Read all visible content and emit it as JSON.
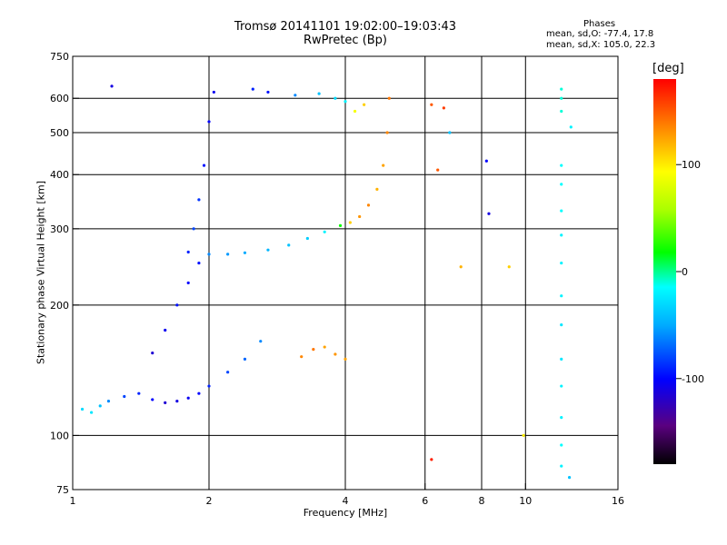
{
  "header": {
    "title": "Tromsø 20141101 19:02:00–19:03:43",
    "subtitle": "RwPretec (Bp)",
    "phases_label": "Phases",
    "stat_o": "mean, sd,O: -77.4, 17.8",
    "stat_x": "mean, sd,X: 105.0, 22.3"
  },
  "colorbar": {
    "unit": "[deg]",
    "ticks": [
      {
        "value": 100,
        "label": "100"
      },
      {
        "value": 0,
        "label": "0"
      },
      {
        "value": -100,
        "label": "-100"
      }
    ],
    "range": [
      -180,
      180
    ]
  },
  "chart_data": {
    "type": "scatter",
    "xlabel": "Frequency [MHz]",
    "ylabel": "Stationary phase Virtual Height [km]",
    "xscale": "log",
    "yscale": "log",
    "xlim": [
      1,
      16
    ],
    "ylim": [
      75,
      750
    ],
    "xticks": [
      {
        "value": 1,
        "label": "1"
      },
      {
        "value": 2,
        "label": "2"
      },
      {
        "value": 4,
        "label": "4"
      },
      {
        "value": 6,
        "label": "6"
      },
      {
        "value": 8,
        "label": "8"
      },
      {
        "value": 10,
        "label": "10"
      },
      {
        "value": 16,
        "label": "16"
      }
    ],
    "yticks": [
      {
        "value": 75,
        "label": "75"
      },
      {
        "value": 100,
        "label": "100"
      },
      {
        "value": 200,
        "label": "200"
      },
      {
        "value": 300,
        "label": "300"
      },
      {
        "value": 400,
        "label": "400"
      },
      {
        "value": 500,
        "label": "500"
      },
      {
        "value": 600,
        "label": "600"
      },
      {
        "value": 750,
        "label": "750"
      }
    ],
    "vgrid": [
      2,
      4,
      6,
      8,
      10
    ],
    "hgrid": [
      100,
      200,
      300,
      400,
      500,
      600
    ],
    "grid": true,
    "color_by": "phase [deg]",
    "points": [
      {
        "x": 1.05,
        "y": 115,
        "phase": -30
      },
      {
        "x": 1.1,
        "y": 113,
        "phase": -25
      },
      {
        "x": 1.15,
        "y": 117,
        "phase": -40
      },
      {
        "x": 1.2,
        "y": 120,
        "phase": -60
      },
      {
        "x": 1.22,
        "y": 640,
        "phase": -110
      },
      {
        "x": 1.3,
        "y": 123,
        "phase": -80
      },
      {
        "x": 1.4,
        "y": 125,
        "phase": -90
      },
      {
        "x": 1.5,
        "y": 121,
        "phase": -100
      },
      {
        "x": 1.6,
        "y": 119,
        "phase": -115
      },
      {
        "x": 1.7,
        "y": 120,
        "phase": -110
      },
      {
        "x": 1.8,
        "y": 122,
        "phase": -105
      },
      {
        "x": 1.9,
        "y": 125,
        "phase": -100
      },
      {
        "x": 2.0,
        "y": 130,
        "phase": -90
      },
      {
        "x": 2.2,
        "y": 140,
        "phase": -80
      },
      {
        "x": 2.4,
        "y": 150,
        "phase": -70
      },
      {
        "x": 2.6,
        "y": 165,
        "phase": -60
      },
      {
        "x": 3.2,
        "y": 152,
        "phase": 135
      },
      {
        "x": 3.4,
        "y": 158,
        "phase": 140
      },
      {
        "x": 3.6,
        "y": 160,
        "phase": 125
      },
      {
        "x": 3.8,
        "y": 154,
        "phase": 130
      },
      {
        "x": 1.5,
        "y": 155,
        "phase": -115
      },
      {
        "x": 1.6,
        "y": 175,
        "phase": -105
      },
      {
        "x": 1.7,
        "y": 200,
        "phase": -95
      },
      {
        "x": 1.8,
        "y": 225,
        "phase": -100
      },
      {
        "x": 1.9,
        "y": 250,
        "phase": -95
      },
      {
        "x": 1.8,
        "y": 265,
        "phase": -90
      },
      {
        "x": 1.85,
        "y": 300,
        "phase": -80
      },
      {
        "x": 1.9,
        "y": 350,
        "phase": -85
      },
      {
        "x": 1.95,
        "y": 420,
        "phase": -95
      },
      {
        "x": 2.0,
        "y": 530,
        "phase": -100
      },
      {
        "x": 2.05,
        "y": 620,
        "phase": -105
      },
      {
        "x": 2.0,
        "y": 262,
        "phase": -60
      },
      {
        "x": 2.2,
        "y": 262,
        "phase": -55
      },
      {
        "x": 2.4,
        "y": 264,
        "phase": -50
      },
      {
        "x": 2.7,
        "y": 268,
        "phase": -45
      },
      {
        "x": 3.0,
        "y": 275,
        "phase": -40
      },
      {
        "x": 3.3,
        "y": 285,
        "phase": -35
      },
      {
        "x": 3.6,
        "y": 295,
        "phase": -20
      },
      {
        "x": 3.9,
        "y": 305,
        "phase": 20
      },
      {
        "x": 4.1,
        "y": 310,
        "phase": 110
      },
      {
        "x": 4.3,
        "y": 320,
        "phase": 130
      },
      {
        "x": 4.5,
        "y": 340,
        "phase": 135
      },
      {
        "x": 4.7,
        "y": 370,
        "phase": 120
      },
      {
        "x": 4.85,
        "y": 420,
        "phase": 125
      },
      {
        "x": 4.95,
        "y": 500,
        "phase": 135
      },
      {
        "x": 5.0,
        "y": 600,
        "phase": 140
      },
      {
        "x": 2.5,
        "y": 630,
        "phase": -90
      },
      {
        "x": 2.7,
        "y": 620,
        "phase": -95
      },
      {
        "x": 3.1,
        "y": 610,
        "phase": -60
      },
      {
        "x": 3.5,
        "y": 615,
        "phase": -40
      },
      {
        "x": 3.8,
        "y": 600,
        "phase": -30
      },
      {
        "x": 4.0,
        "y": 590,
        "phase": -20
      },
      {
        "x": 4.2,
        "y": 560,
        "phase": 90
      },
      {
        "x": 4.4,
        "y": 580,
        "phase": 110
      },
      {
        "x": 6.2,
        "y": 580,
        "phase": 150
      },
      {
        "x": 6.6,
        "y": 570,
        "phase": 160
      },
      {
        "x": 6.8,
        "y": 500,
        "phase": -40
      },
      {
        "x": 7.2,
        "y": 245,
        "phase": 120
      },
      {
        "x": 8.2,
        "y": 430,
        "phase": -100
      },
      {
        "x": 8.3,
        "y": 325,
        "phase": -110
      },
      {
        "x": 9.2,
        "y": 245,
        "phase": 110
      },
      {
        "x": 6.2,
        "y": 88,
        "phase": 170
      },
      {
        "x": 6.4,
        "y": 410,
        "phase": 150
      },
      {
        "x": 9.9,
        "y": 100,
        "phase": 100
      },
      {
        "x": 12.0,
        "y": 630,
        "phase": -10
      },
      {
        "x": 12.0,
        "y": 600,
        "phase": -10
      },
      {
        "x": 12.0,
        "y": 560,
        "phase": -10
      },
      {
        "x": 12.0,
        "y": 420,
        "phase": -15
      },
      {
        "x": 12.0,
        "y": 380,
        "phase": -15
      },
      {
        "x": 12.0,
        "y": 330,
        "phase": -15
      },
      {
        "x": 12.0,
        "y": 290,
        "phase": -20
      },
      {
        "x": 12.0,
        "y": 250,
        "phase": -20
      },
      {
        "x": 12.0,
        "y": 210,
        "phase": -20
      },
      {
        "x": 12.0,
        "y": 180,
        "phase": -25
      },
      {
        "x": 12.0,
        "y": 150,
        "phase": -25
      },
      {
        "x": 12.0,
        "y": 130,
        "phase": -20
      },
      {
        "x": 12.0,
        "y": 110,
        "phase": -20
      },
      {
        "x": 12.0,
        "y": 95,
        "phase": -15
      },
      {
        "x": 12.0,
        "y": 85,
        "phase": -20
      },
      {
        "x": 12.5,
        "y": 80,
        "phase": -40
      },
      {
        "x": 12.6,
        "y": 515,
        "phase": -20
      },
      {
        "x": 4.0,
        "y": 150,
        "phase": 125
      }
    ]
  }
}
